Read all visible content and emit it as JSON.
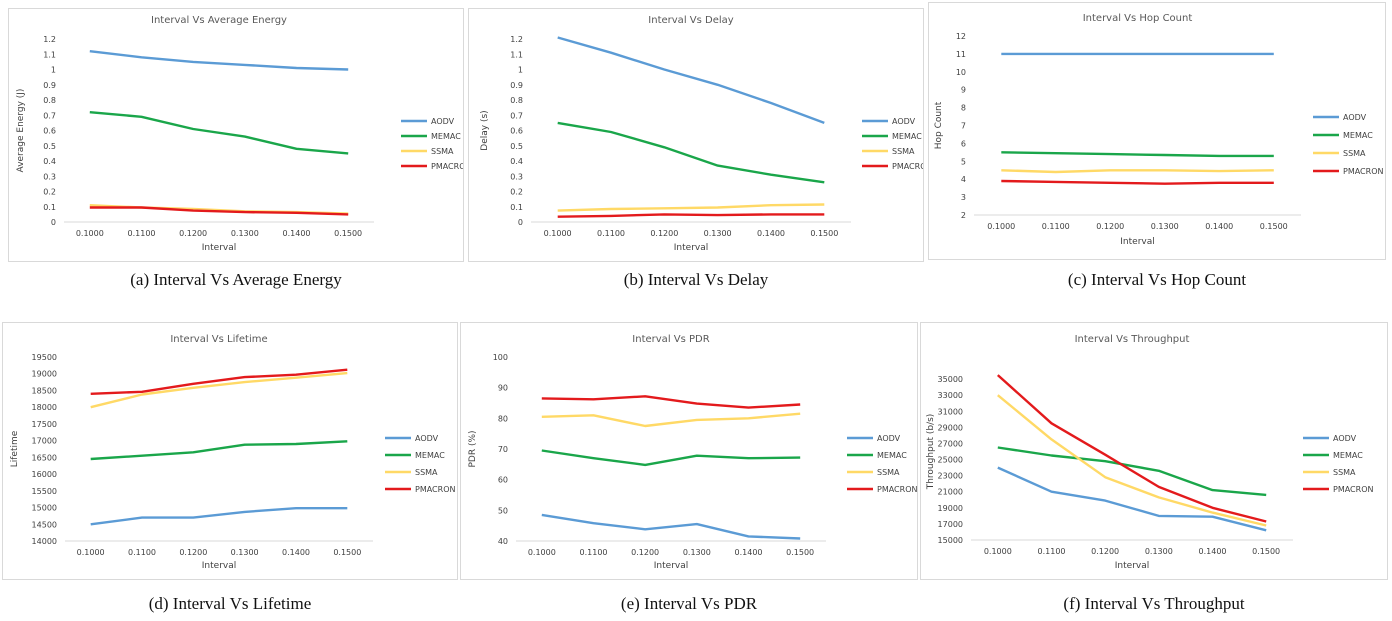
{
  "colors": {
    "AODV": "#5b9bd5",
    "MEMAC": "#1aa64a",
    "SSMA": "#ffd966",
    "PMACRON": "#e31a1c"
  },
  "captions": [
    "(a) Interval Vs Average Energy",
    "(b) Interval Vs Delay",
    "(c) Interval Vs Hop Count",
    "(d) Interval Vs Lifetime",
    "(e) Interval Vs PDR",
    "(f) Interval Vs Throughput"
  ],
  "chart_data": [
    {
      "type": "line",
      "title": "Interval Vs Average Energy",
      "xlabel": "Interval",
      "ylabel": "Average Energy (J)",
      "categories": [
        "0.1000",
        "0.1100",
        "0.1200",
        "0.1300",
        "0.1400",
        "0.1500"
      ],
      "ylim": [
        0,
        1.2
      ],
      "yticks": [
        "0",
        "0.1",
        "0.2",
        "0.3",
        "0.4",
        "0.5",
        "0.6",
        "0.7",
        "0.8",
        "0.9",
        "1",
        "1.1",
        "1.2"
      ],
      "legend": "right",
      "series": [
        {
          "name": "AODV",
          "values": [
            1.12,
            1.08,
            1.05,
            1.03,
            1.01,
            1.0
          ]
        },
        {
          "name": "MEMAC",
          "values": [
            0.72,
            0.69,
            0.61,
            0.56,
            0.48,
            0.45
          ]
        },
        {
          "name": "SSMA",
          "values": [
            0.11,
            0.095,
            0.085,
            0.07,
            0.065,
            0.055
          ]
        },
        {
          "name": "PMACRON",
          "values": [
            0.095,
            0.095,
            0.075,
            0.065,
            0.06,
            0.05
          ]
        }
      ]
    },
    {
      "type": "line",
      "title": "Interval Vs Delay",
      "xlabel": "Interval",
      "ylabel": "Delay (s)",
      "categories": [
        "0.1000",
        "0.1100",
        "0.1200",
        "0.1300",
        "0.1400",
        "0.1500"
      ],
      "ylim": [
        0,
        1.2
      ],
      "yticks": [
        "0",
        "0.1",
        "0.2",
        "0.3",
        "0.4",
        "0.5",
        "0.6",
        "0.7",
        "0.8",
        "0.9",
        "1",
        "1.1",
        "1.2"
      ],
      "legend": "right",
      "series": [
        {
          "name": "AODV",
          "values": [
            1.21,
            1.11,
            1.0,
            0.9,
            0.78,
            0.65
          ]
        },
        {
          "name": "MEMAC",
          "values": [
            0.65,
            0.59,
            0.49,
            0.37,
            0.31,
            0.26
          ]
        },
        {
          "name": "SSMA",
          "values": [
            0.075,
            0.085,
            0.09,
            0.095,
            0.11,
            0.115
          ]
        },
        {
          "name": "PMACRON",
          "values": [
            0.035,
            0.04,
            0.05,
            0.045,
            0.05,
            0.05
          ]
        }
      ]
    },
    {
      "type": "line",
      "title": "Interval Vs Hop Count",
      "xlabel": "Interval",
      "ylabel": "Hop Count",
      "categories": [
        "0.1000",
        "0.1100",
        "0.1200",
        "0.1300",
        "0.1400",
        "0.1500"
      ],
      "ylim": [
        2,
        12
      ],
      "yticks": [
        "2",
        "3",
        "4",
        "5",
        "6",
        "7",
        "8",
        "9",
        "10",
        "11",
        "12"
      ],
      "legend": "right",
      "series": [
        {
          "name": "AODV",
          "values": [
            11,
            11,
            11,
            11,
            11,
            11
          ]
        },
        {
          "name": "MEMAC",
          "values": [
            5.5,
            5.45,
            5.4,
            5.35,
            5.3,
            5.3
          ]
        },
        {
          "name": "SSMA",
          "values": [
            4.5,
            4.4,
            4.5,
            4.5,
            4.45,
            4.5
          ]
        },
        {
          "name": "PMACRON",
          "values": [
            3.9,
            3.85,
            3.8,
            3.75,
            3.8,
            3.8
          ]
        }
      ]
    },
    {
      "type": "line",
      "title": "Interval Vs Lifetime",
      "xlabel": "Interval",
      "ylabel": "Lifetime",
      "categories": [
        "0.1000",
        "0.1100",
        "0.1200",
        "0.1300",
        "0.1400",
        "0.1500"
      ],
      "ylim": [
        14000,
        19500
      ],
      "yticks": [
        "14000",
        "14500",
        "15000",
        "15500",
        "16000",
        "16500",
        "17000",
        "17500",
        "18000",
        "18500",
        "19000",
        "19500"
      ],
      "legend": "right",
      "series": [
        {
          "name": "AODV",
          "values": [
            14500,
            14700,
            14700,
            14870,
            14980,
            14980
          ]
        },
        {
          "name": "MEMAC",
          "values": [
            16450,
            16550,
            16650,
            16880,
            16900,
            16980
          ]
        },
        {
          "name": "SSMA",
          "values": [
            18000,
            18380,
            18580,
            18750,
            18880,
            19020
          ]
        },
        {
          "name": "PMACRON",
          "values": [
            18400,
            18460,
            18700,
            18900,
            18970,
            19120
          ]
        }
      ]
    },
    {
      "type": "line",
      "title": "Interval Vs PDR",
      "xlabel": "Interval",
      "ylabel": "PDR (%)",
      "categories": [
        "0.1000",
        "0.1100",
        "0.1200",
        "0.1300",
        "0.1400",
        "0.1500"
      ],
      "ylim": [
        40,
        100
      ],
      "yticks": [
        "40",
        "50",
        "60",
        "70",
        "80",
        "90",
        "100"
      ],
      "legend": "right",
      "series": [
        {
          "name": "AODV",
          "values": [
            48.5,
            45.8,
            43.8,
            45.5,
            41.5,
            40.8
          ]
        },
        {
          "name": "MEMAC",
          "values": [
            69.5,
            67.0,
            64.8,
            67.8,
            67.0,
            67.2
          ]
        },
        {
          "name": "SSMA",
          "values": [
            80.5,
            81.0,
            77.5,
            79.5,
            80.0,
            81.5
          ]
        },
        {
          "name": "PMACRON",
          "values": [
            86.5,
            86.2,
            87.2,
            84.8,
            83.5,
            84.5
          ]
        }
      ]
    },
    {
      "type": "line",
      "title": "Interval Vs Throughput",
      "xlabel": "Interval",
      "ylabel": "Throughput (b/s)",
      "categories": [
        "0.1000",
        "0.1100",
        "0.1200",
        "0.1300",
        "0.1400",
        "0.1500"
      ],
      "ylim": [
        15000,
        37000
      ],
      "yticks": [
        "15000",
        "17000",
        "19000",
        "21000",
        "23000",
        "25000",
        "27000",
        "29000",
        "31000",
        "33000",
        "35000"
      ],
      "legend": "right",
      "series": [
        {
          "name": "AODV",
          "values": [
            24000,
            21000,
            19900,
            18000,
            17900,
            16200
          ]
        },
        {
          "name": "MEMAC",
          "values": [
            26500,
            25500,
            24800,
            23600,
            21200,
            20600
          ]
        },
        {
          "name": "SSMA",
          "values": [
            33000,
            27500,
            22800,
            20300,
            18400,
            16800
          ]
        },
        {
          "name": "PMACRON",
          "values": [
            35500,
            29500,
            25600,
            21600,
            19000,
            17300
          ]
        }
      ]
    }
  ]
}
